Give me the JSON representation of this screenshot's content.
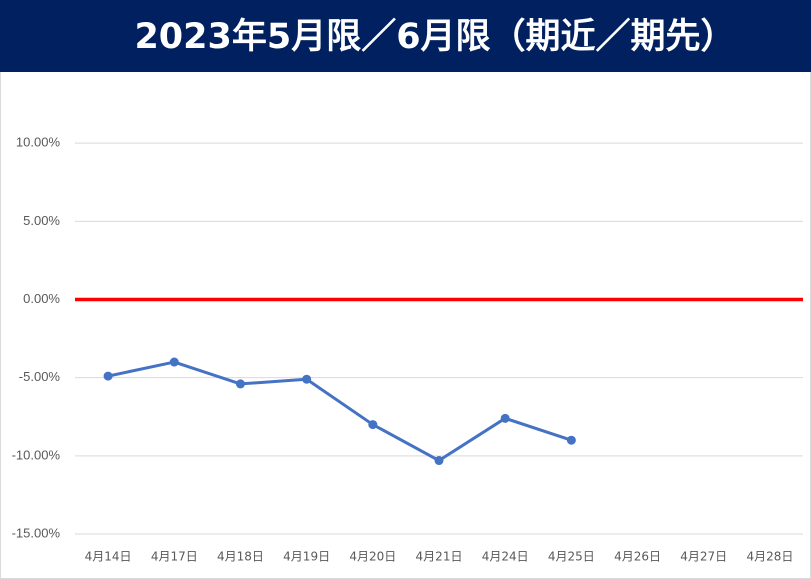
{
  "chart_data": {
    "type": "line",
    "title": "2023年5月限／6月限（期近／期先）",
    "categories": [
      "4月14日",
      "4月17日",
      "4月18日",
      "4月19日",
      "4月20日",
      "4月21日",
      "4月24日",
      "4月25日",
      "4月26日",
      "4月27日",
      "4月28日"
    ],
    "series": [
      {
        "color": "#4472c4",
        "values": [
          -4.9,
          -4.0,
          -5.4,
          -5.1,
          -8.0,
          -10.3,
          -7.6,
          -9.0,
          null,
          null,
          null
        ]
      }
    ],
    "reference_line": {
      "value": 0,
      "color": "#ff0000"
    },
    "ylim": [
      -15,
      15
    ],
    "yticks": [
      {
        "value": -15,
        "label": "-15.00%"
      },
      {
        "value": -10,
        "label": "-10.00%"
      },
      {
        "value": -5,
        "label": "-5.00%"
      },
      {
        "value": 0,
        "label": "0.00%"
      },
      {
        "value": 5,
        "label": "5.00%"
      },
      {
        "value": 10,
        "label": "10.00%"
      }
    ],
    "grid": true
  }
}
